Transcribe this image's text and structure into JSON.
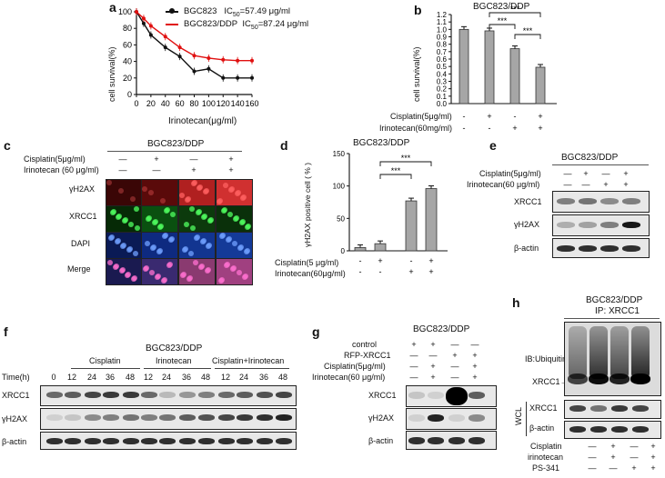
{
  "panels": {
    "a": {
      "letter": "a",
      "chart_data": {
        "type": "line",
        "ylabel": "cell survival(%)",
        "xlabel": "Irinotecan(μg/ml)",
        "x": [
          0,
          10,
          20,
          40,
          60,
          80,
          100,
          120,
          140,
          160
        ],
        "xticks": [
          "0",
          "20",
          "40",
          "60",
          "80",
          "100",
          "120",
          "140",
          "160"
        ],
        "yticks": [
          "0",
          "20",
          "40",
          "60",
          "80",
          "100"
        ],
        "xlim": [
          0,
          160
        ],
        "ylim": [
          0,
          100
        ],
        "series": [
          {
            "name": "BGC823",
            "ic50_label": "IC",
            "ic50_sub": "50",
            "ic50_value": "=57.49 μg/ml",
            "color": "#111111",
            "values": [
              100,
              86,
              72,
              57,
              46,
              28,
              31,
              20,
              20,
              20
            ]
          },
          {
            "name": "BGC823/DDP",
            "ic50_label": "IC",
            "ic50_sub": "50",
            "ic50_value": "=87.24  μg/ml",
            "color": "#e01010",
            "values": [
              100,
              92,
              83,
              70,
              57,
              47,
              44,
              42,
              41,
              41
            ]
          }
        ]
      }
    },
    "b": {
      "letter": "b",
      "chart_data": {
        "type": "bar",
        "title": "BGC823/DDP",
        "ylabel": "cell survival(%)",
        "yticks": [
          "0.0",
          "0.1",
          "0.2",
          "0.3",
          "0.4",
          "0.5",
          "0.6",
          "0.7",
          "0.8",
          "0.9",
          "1.0",
          "1.1",
          "1.2"
        ],
        "ylim": [
          0,
          1.2
        ],
        "values": [
          1.0,
          0.98,
          0.74,
          0.49
        ],
        "row_labels": [
          "Cisplatin(5μg/ml)",
          "Irinotecan(60mg/ml)"
        ],
        "treatment": [
          [
            "-",
            "+",
            "-",
            "+"
          ],
          [
            "-",
            "-",
            "+",
            "+"
          ]
        ],
        "significance": "***"
      }
    },
    "c": {
      "letter": "c",
      "title": "BGC823/DDP",
      "row_labels": [
        "Cisplatin(5μg/ml)",
        "Irinotecan (60 μg/ml)"
      ],
      "treatment": [
        [
          "—",
          "+",
          "—",
          "+"
        ],
        [
          "—",
          "—",
          "+",
          "+"
        ]
      ],
      "stains": [
        "γH2AX",
        "XRCC1",
        "DAPI",
        "Merge"
      ]
    },
    "d": {
      "letter": "d",
      "chart_data": {
        "type": "bar",
        "title": "BGC823/DDP",
        "ylabel": "γH2AX positive cell ( % )",
        "yticks": [
          "0",
          "50",
          "100",
          "150"
        ],
        "ylim": [
          0,
          150
        ],
        "values": [
          5,
          11,
          77,
          96
        ],
        "row_labels": [
          "Cisplatin(5 μg/ml)",
          "Irinotecan(60μg/ml)"
        ],
        "treatment": [
          [
            "-",
            "+",
            "-",
            "+"
          ],
          [
            "-",
            "-",
            "+",
            "+"
          ]
        ],
        "significance": "***"
      }
    },
    "e": {
      "letter": "e",
      "title": "BGC823/DDP",
      "row_labels": [
        "Cisplatin(5μg/ml)",
        "Irinotecan(60 μg/ml)"
      ],
      "treatment": [
        [
          "—",
          "+",
          "—",
          "+"
        ],
        [
          "—",
          "—",
          "+",
          "+"
        ]
      ],
      "blots": [
        "XRCC1",
        "γH2AX",
        "β-actin"
      ]
    },
    "f": {
      "letter": "f",
      "title": "BGC823/DDP",
      "groups": [
        "Cisplatin",
        "Irinotecan",
        "Cisplatin+Irinotecan"
      ],
      "time_label": "Time(h)",
      "times": [
        "0",
        "12",
        "24",
        "36",
        "48",
        "12",
        "24",
        "36",
        "48",
        "12",
        "24",
        "36",
        "48"
      ],
      "blots": [
        "XRCC1",
        "γH2AX",
        "β-actin"
      ]
    },
    "g": {
      "letter": "g",
      "title": "BGC823/DDP",
      "row_labels": [
        "control",
        "RFP-XRCC1",
        "Cisplatin(5μg/ml)",
        "Irinotecan(60 μg/ml)"
      ],
      "treatment": [
        [
          "+",
          "+",
          "—",
          "—"
        ],
        [
          "—",
          "—",
          "+",
          "+"
        ],
        [
          "—",
          "+",
          "—",
          "+"
        ],
        [
          "—",
          "+",
          "—",
          "+"
        ]
      ],
      "blots": [
        "XRCC1",
        "γH2AX",
        "β-actin"
      ]
    },
    "h": {
      "letter": "h",
      "title": "BGC823/DDP",
      "subtitle": "IP: XRCC1",
      "ib_label": "IB:Ubiquitin",
      "xrcc1_arrow": "XRCC1→",
      "wcl_label": "WCL",
      "wcl_blots": [
        "XRCC1",
        "β-actin"
      ],
      "row_labels": [
        "Cisplatin",
        "irinotecan",
        "PS-341"
      ],
      "treatment": [
        [
          "—",
          "+",
          "—",
          "+"
        ],
        [
          "—",
          "+",
          "—",
          "+"
        ],
        [
          "—",
          "—",
          "+",
          "+"
        ]
      ]
    }
  },
  "colors": {
    "black_series": "#111111",
    "red_series": "#e01010",
    "bar_fill": "#a6a6a6"
  }
}
